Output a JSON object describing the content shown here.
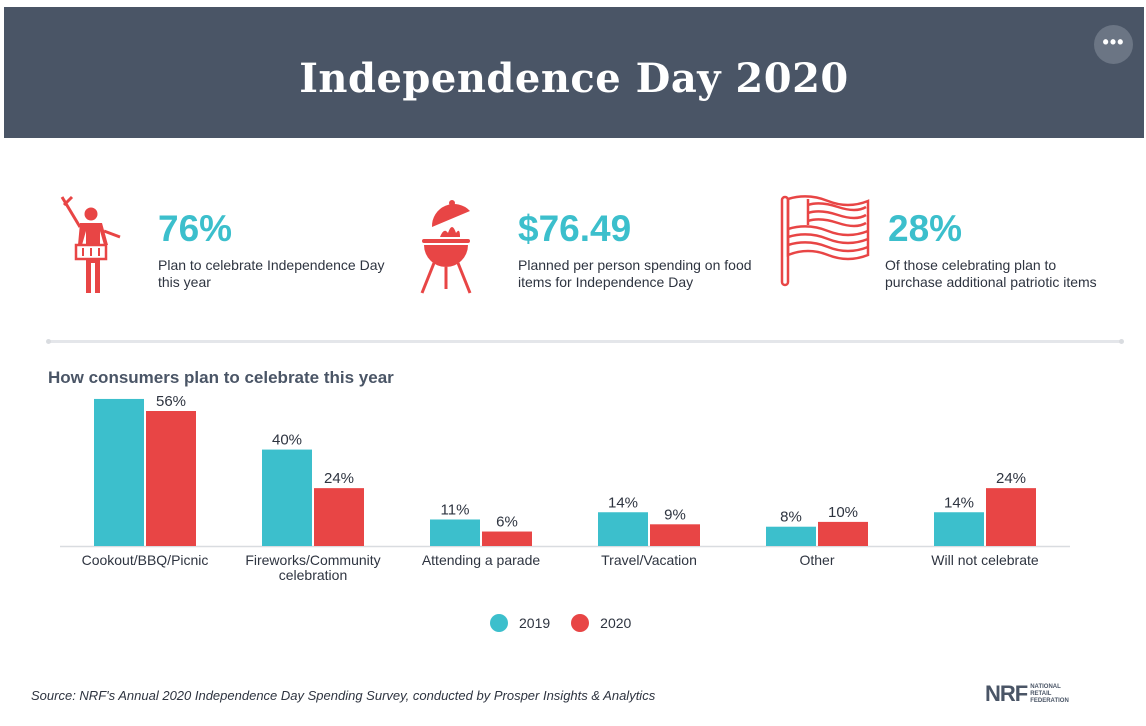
{
  "header": {
    "title": "Independence Day 2020",
    "menu_icon": "ellipsis-icon"
  },
  "stats": [
    {
      "icon": "person-with-grill-icon",
      "value": "76%",
      "description": "Plan to celebrate Independence Day this year"
    },
    {
      "icon": "grill-icon",
      "value": "$76.49",
      "description": "Planned per person spending on food items for Independence Day"
    },
    {
      "icon": "flag-icon",
      "value": "28%",
      "description": "Of those celebrating plan to purchase additional patriotic items"
    }
  ],
  "colors": {
    "header": "#4a5566",
    "accent_teal": "#3cbfcc",
    "accent_red": "#e84545"
  },
  "chart_data": {
    "type": "bar",
    "title": "How consumers plan to celebrate this year",
    "categories": [
      "Cookout/BBQ/Picnic",
      "Fireworks/Community celebration",
      "Attending a parade",
      "Travel/Vacation",
      "Other",
      "Will not celebrate"
    ],
    "series": [
      {
        "name": "2019",
        "color": "#3cbfcc",
        "values": [
          null,
          40,
          11,
          14,
          8,
          14
        ],
        "labels": [
          "",
          "40%",
          "11%",
          "14%",
          "8%",
          "14%"
        ]
      },
      {
        "name": "2020",
        "color": "#e84545",
        "values": [
          56,
          24,
          6,
          9,
          10,
          24
        ],
        "labels": [
          "56%",
          "24%",
          "6%",
          "9%",
          "10%",
          "24%"
        ]
      }
    ],
    "bar_2019_cookout_height_estimate": 61,
    "ylim": [
      0,
      61
    ],
    "legend_position": "bottom-center",
    "grid": false
  },
  "footer": {
    "source": "Source: NRF's Annual 2020 Independence Day Spending Survey, conducted by Prosper Insights & Analytics",
    "logo_main": "NRF",
    "logo_sub": [
      "NATIONAL",
      "RETAIL",
      "FEDERATION"
    ]
  }
}
